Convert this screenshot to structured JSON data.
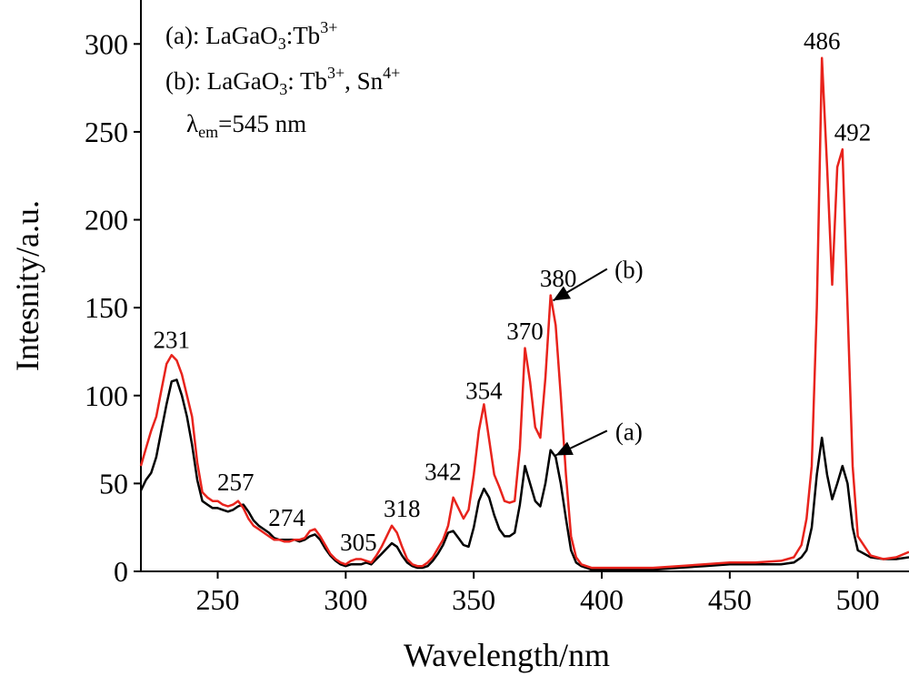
{
  "chart_data": {
    "type": "line",
    "xlabel": "Wavelength/nm",
    "ylabel": "Intesnity/a.u.",
    "xlim": [
      220,
      520
    ],
    "ylim": [
      0,
      325
    ],
    "xticks": [
      250,
      300,
      350,
      400,
      450,
      500
    ],
    "yticks": [
      0,
      50,
      100,
      150,
      200,
      250,
      300
    ],
    "legend": {
      "line_a": {
        "prefix": "(a): LaGaO",
        "sub": "3",
        "mid": ":Tb",
        "sup": "3+"
      },
      "line_b": {
        "prefix": "(b): LaGaO",
        "sub": "3",
        "mid": ": Tb",
        "sup": "3+",
        "mid2": ", Sn",
        "sup2": "4+"
      },
      "line_c": {
        "sym": "λ",
        "sub": "em",
        "rest": "=545 nm"
      }
    },
    "series": [
      {
        "name": "(a)",
        "color": "#000000",
        "x": [
          220,
          222,
          224,
          226,
          228,
          230,
          232,
          234,
          236,
          238,
          240,
          242,
          244,
          246,
          248,
          250,
          252,
          254,
          256,
          258,
          260,
          262,
          264,
          266,
          268,
          270,
          272,
          274,
          276,
          278,
          280,
          282,
          284,
          286,
          288,
          290,
          292,
          294,
          296,
          298,
          300,
          302,
          304,
          306,
          308,
          310,
          312,
          314,
          316,
          318,
          320,
          322,
          324,
          326,
          328,
          330,
          332,
          334,
          336,
          338,
          340,
          342,
          344,
          346,
          348,
          350,
          352,
          354,
          356,
          358,
          360,
          362,
          364,
          366,
          368,
          370,
          372,
          374,
          376,
          378,
          380,
          382,
          384,
          386,
          388,
          390,
          392,
          394,
          396,
          400,
          410,
          420,
          430,
          440,
          450,
          460,
          470,
          475,
          478,
          480,
          482,
          484,
          486,
          488,
          490,
          492,
          494,
          496,
          498,
          500,
          505,
          510,
          515,
          520
        ],
        "y": [
          46,
          52,
          56,
          65,
          80,
          95,
          108,
          109,
          100,
          88,
          72,
          52,
          40,
          38,
          36,
          36,
          35,
          34,
          35,
          37,
          38,
          34,
          29,
          26,
          24,
          22,
          19,
          18,
          18,
          18,
          18,
          17,
          18,
          20,
          21,
          18,
          13,
          9,
          6,
          4,
          3,
          4,
          4,
          4,
          5,
          4,
          7,
          10,
          13,
          16,
          14,
          9,
          5,
          3,
          2,
          2,
          3,
          6,
          10,
          15,
          22,
          23,
          19,
          15,
          14,
          25,
          40,
          47,
          42,
          32,
          24,
          20,
          20,
          22,
          38,
          60,
          50,
          40,
          37,
          50,
          69,
          65,
          50,
          30,
          12,
          5,
          3,
          2,
          1,
          1,
          1,
          1,
          2,
          3,
          4,
          4,
          4,
          5,
          8,
          12,
          25,
          55,
          76,
          55,
          41,
          50,
          60,
          50,
          25,
          12,
          8,
          7,
          7,
          8
        ]
      },
      {
        "name": "(b)",
        "color": "#e8231c",
        "x": [
          220,
          222,
          224,
          226,
          228,
          230,
          232,
          234,
          236,
          238,
          240,
          242,
          244,
          246,
          248,
          250,
          252,
          254,
          256,
          258,
          260,
          262,
          264,
          266,
          268,
          270,
          272,
          274,
          276,
          278,
          280,
          282,
          284,
          286,
          288,
          290,
          292,
          294,
          296,
          298,
          300,
          302,
          304,
          306,
          308,
          310,
          312,
          314,
          316,
          318,
          320,
          322,
          324,
          326,
          328,
          330,
          332,
          334,
          336,
          338,
          340,
          342,
          344,
          346,
          348,
          350,
          352,
          354,
          356,
          358,
          360,
          362,
          364,
          366,
          368,
          370,
          372,
          374,
          376,
          378,
          380,
          382,
          384,
          386,
          388,
          390,
          392,
          394,
          396,
          400,
          410,
          420,
          430,
          440,
          450,
          460,
          470,
          475,
          478,
          480,
          482,
          484,
          486,
          488,
          490,
          492,
          494,
          496,
          498,
          500,
          505,
          510,
          515,
          520
        ],
        "y": [
          60,
          70,
          80,
          88,
          103,
          118,
          123,
          120,
          112,
          100,
          88,
          62,
          45,
          42,
          40,
          40,
          38,
          37,
          38,
          40,
          36,
          30,
          26,
          24,
          22,
          20,
          18,
          18,
          17,
          17,
          18,
          18,
          19,
          23,
          24,
          20,
          15,
          10,
          7,
          5,
          4,
          6,
          7,
          7,
          6,
          5,
          9,
          14,
          20,
          26,
          22,
          14,
          7,
          4,
          3,
          3,
          5,
          8,
          13,
          18,
          26,
          42,
          36,
          30,
          35,
          55,
          80,
          95,
          75,
          55,
          48,
          40,
          39,
          40,
          70,
          127,
          108,
          82,
          76,
          110,
          157,
          140,
          100,
          55,
          20,
          8,
          4,
          3,
          2,
          2,
          2,
          2,
          3,
          4,
          5,
          5,
          6,
          8,
          15,
          30,
          60,
          150,
          292,
          230,
          163,
          230,
          240,
          150,
          60,
          20,
          9,
          7,
          8,
          11
        ]
      }
    ],
    "peak_labels": [
      {
        "text": "231",
        "x": 232,
        "y": 127
      },
      {
        "text": "257",
        "x": 257,
        "y": 46
      },
      {
        "text": "274",
        "x": 277,
        "y": 26
      },
      {
        "text": "305",
        "x": 305,
        "y": 12
      },
      {
        "text": "318",
        "x": 322,
        "y": 31
      },
      {
        "text": "342",
        "x": 338,
        "y": 52
      },
      {
        "text": "354",
        "x": 354,
        "y": 98
      },
      {
        "text": "370",
        "x": 370,
        "y": 132
      },
      {
        "text": "380",
        "x": 383,
        "y": 162
      },
      {
        "text": "486",
        "x": 486,
        "y": 297
      },
      {
        "text": "492",
        "x": 498,
        "y": 245
      }
    ],
    "annotations": [
      {
        "text": "(b)",
        "x": 390,
        "y": 172,
        "arrow_to": [
          381,
          154
        ]
      },
      {
        "text": "(a)",
        "x": 390,
        "y": 80,
        "arrow_to": [
          382,
          66
        ]
      }
    ]
  }
}
